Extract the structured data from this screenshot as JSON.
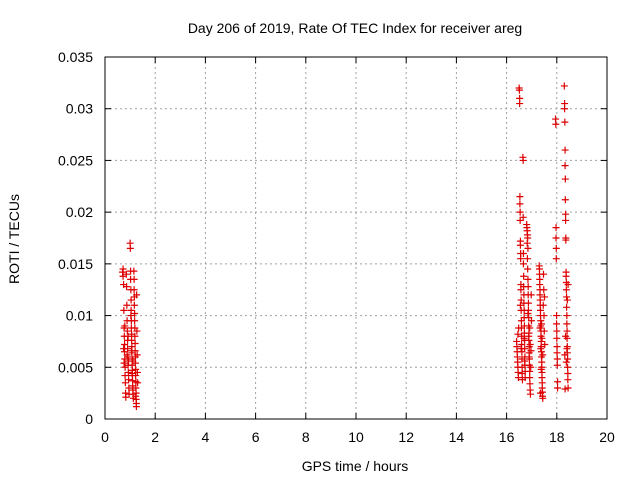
{
  "chart_data": {
    "type": "scatter",
    "title": "Day 206 of 2019, Rate Of TEC Index for receiver areg",
    "xlabel": "GPS time / hours",
    "ylabel": "ROTI / TECUs",
    "xlim": [
      0,
      20
    ],
    "ylim": [
      0,
      0.035
    ],
    "xticks": [
      0,
      2,
      4,
      6,
      8,
      10,
      12,
      14,
      16,
      18,
      20
    ],
    "xtick_labels": [
      "0",
      "2",
      "4",
      "6",
      "8",
      "10",
      "12",
      "14",
      "16",
      "18",
      "20"
    ],
    "yticks": [
      0,
      0.005,
      0.01,
      0.015,
      0.02,
      0.025,
      0.03,
      0.035
    ],
    "ytick_labels": [
      "0",
      "0.005",
      "0.01",
      "0.015",
      "0.02",
      "0.025",
      "0.03",
      "0.035"
    ],
    "grid": true,
    "marker": "plus",
    "color": "#dd0000",
    "series": [
      {
        "name": "ROTI",
        "points": [
          [
            0.7,
            0.0142
          ],
          [
            0.72,
            0.0138
          ],
          [
            0.74,
            0.013
          ],
          [
            0.75,
            0.0105
          ],
          [
            0.76,
            0.0088
          ],
          [
            0.77,
            0.008
          ],
          [
            0.78,
            0.0072
          ],
          [
            0.78,
            0.0065
          ],
          [
            0.79,
            0.0058
          ],
          [
            0.8,
            0.005
          ],
          [
            0.8,
            0.0042
          ],
          [
            0.81,
            0.0035
          ],
          [
            0.82,
            0.0025
          ],
          [
            0.83,
            0.0021
          ],
          [
            0.72,
            0.0145
          ],
          [
            0.74,
            0.0068
          ],
          [
            0.76,
            0.0054
          ],
          [
            0.79,
            0.009
          ],
          [
            0.85,
            0.014
          ],
          [
            0.86,
            0.0128
          ],
          [
            0.87,
            0.011
          ],
          [
            0.88,
            0.0095
          ],
          [
            0.89,
            0.0085
          ],
          [
            0.9,
            0.0076
          ],
          [
            0.9,
            0.0068
          ],
          [
            0.91,
            0.006
          ],
          [
            0.92,
            0.0052
          ],
          [
            0.93,
            0.0045
          ],
          [
            0.94,
            0.0038
          ],
          [
            0.95,
            0.003
          ],
          [
            0.96,
            0.0024
          ],
          [
            0.88,
            0.0062
          ],
          [
            0.92,
            0.008
          ],
          [
            0.94,
            0.0056
          ],
          [
            1.0,
            0.017
          ],
          [
            1.01,
            0.0165
          ],
          [
            1.02,
            0.0143
          ],
          [
            1.02,
            0.0135
          ],
          [
            1.03,
            0.0125
          ],
          [
            1.04,
            0.0115
          ],
          [
            1.04,
            0.0105
          ],
          [
            1.05,
            0.0095
          ],
          [
            1.05,
            0.0088
          ],
          [
            1.06,
            0.0082
          ],
          [
            1.06,
            0.0076
          ],
          [
            1.07,
            0.007
          ],
          [
            1.07,
            0.0064
          ],
          [
            1.08,
            0.0058
          ],
          [
            1.08,
            0.0052
          ],
          [
            1.09,
            0.0047
          ],
          [
            1.09,
            0.0042
          ],
          [
            1.1,
            0.0037
          ],
          [
            1.1,
            0.0032
          ],
          [
            1.11,
            0.0028
          ],
          [
            1.12,
            0.0024
          ],
          [
            1.13,
            0.002
          ],
          [
            1.03,
            0.01
          ],
          [
            1.06,
            0.0066
          ],
          [
            1.08,
            0.0044
          ],
          [
            1.11,
            0.0056
          ],
          [
            1.15,
            0.0143
          ],
          [
            1.16,
            0.0135
          ],
          [
            1.16,
            0.0125
          ],
          [
            1.17,
            0.0118
          ],
          [
            1.17,
            0.011
          ],
          [
            1.18,
            0.0102
          ],
          [
            1.18,
            0.0095
          ],
          [
            1.19,
            0.0088
          ],
          [
            1.19,
            0.008
          ],
          [
            1.2,
            0.0073
          ],
          [
            1.2,
            0.0066
          ],
          [
            1.21,
            0.006
          ],
          [
            1.21,
            0.0054
          ],
          [
            1.22,
            0.0048
          ],
          [
            1.22,
            0.0042
          ],
          [
            1.23,
            0.0036
          ],
          [
            1.23,
            0.003
          ],
          [
            1.24,
            0.0025
          ],
          [
            1.24,
            0.0019
          ],
          [
            1.25,
            0.0015
          ],
          [
            1.25,
            0.0012
          ],
          [
            1.26,
            0.012
          ],
          [
            1.27,
            0.0085
          ],
          [
            1.28,
            0.0062
          ],
          [
            1.29,
            0.0045
          ],
          [
            1.3,
            0.0035
          ],
          [
            1.22,
            0.0022
          ],
          [
            16.4,
            0.0075
          ],
          [
            16.41,
            0.007
          ],
          [
            16.42,
            0.0065
          ],
          [
            16.43,
            0.006
          ],
          [
            16.44,
            0.0055
          ],
          [
            16.45,
            0.005
          ],
          [
            16.46,
            0.0045
          ],
          [
            16.47,
            0.004
          ],
          [
            16.45,
            0.0082
          ],
          [
            16.48,
            0.0088
          ],
          [
            16.5,
            0.032
          ],
          [
            16.51,
            0.0318
          ],
          [
            16.52,
            0.031
          ],
          [
            16.52,
            0.0305
          ],
          [
            16.53,
            0.0215
          ],
          [
            16.53,
            0.0208
          ],
          [
            16.54,
            0.02
          ],
          [
            16.54,
            0.0192
          ],
          [
            16.55,
            0.0172
          ],
          [
            16.55,
            0.0168
          ],
          [
            16.56,
            0.016
          ],
          [
            16.56,
            0.0155
          ],
          [
            16.57,
            0.013
          ],
          [
            16.57,
            0.0125
          ],
          [
            16.58,
            0.0115
          ],
          [
            16.58,
            0.0105
          ],
          [
            16.59,
            0.0095
          ],
          [
            16.59,
            0.0088
          ],
          [
            16.6,
            0.008
          ],
          [
            16.6,
            0.0072
          ],
          [
            16.61,
            0.0065
          ],
          [
            16.61,
            0.0058
          ],
          [
            16.62,
            0.005
          ],
          [
            16.62,
            0.0044
          ],
          [
            16.63,
            0.0038
          ],
          [
            16.55,
            0.011
          ],
          [
            16.58,
            0.0068
          ],
          [
            16.65,
            0.0253
          ],
          [
            16.66,
            0.025
          ],
          [
            16.66,
            0.0195
          ],
          [
            16.67,
            0.016
          ],
          [
            16.67,
            0.015
          ],
          [
            16.68,
            0.0138
          ],
          [
            16.68,
            0.0128
          ],
          [
            16.69,
            0.012
          ],
          [
            16.69,
            0.0112
          ],
          [
            16.7,
            0.0105
          ],
          [
            16.7,
            0.0098
          ],
          [
            16.71,
            0.009
          ],
          [
            16.71,
            0.0083
          ],
          [
            16.72,
            0.0076
          ],
          [
            16.72,
            0.0068
          ],
          [
            16.73,
            0.006
          ],
          [
            16.73,
            0.0052
          ],
          [
            16.74,
            0.0046
          ],
          [
            16.74,
            0.004
          ],
          [
            16.7,
            0.0078
          ],
          [
            16.72,
            0.0056
          ],
          [
            16.8,
            0.0188
          ],
          [
            16.81,
            0.0185
          ],
          [
            16.82,
            0.0182
          ],
          [
            16.83,
            0.0178
          ],
          [
            16.84,
            0.0175
          ],
          [
            16.82,
            0.017
          ],
          [
            16.85,
            0.0165
          ],
          [
            16.83,
            0.0155
          ],
          [
            16.84,
            0.0145
          ],
          [
            16.85,
            0.0135
          ],
          [
            16.86,
            0.0128
          ],
          [
            16.86,
            0.012
          ],
          [
            16.87,
            0.0112
          ],
          [
            16.87,
            0.0105
          ],
          [
            16.88,
            0.0098
          ],
          [
            16.88,
            0.009
          ],
          [
            16.89,
            0.0083
          ],
          [
            16.89,
            0.0076
          ],
          [
            16.9,
            0.007
          ],
          [
            16.9,
            0.0064
          ],
          [
            16.91,
            0.0058
          ],
          [
            16.91,
            0.0052
          ],
          [
            16.92,
            0.0046
          ],
          [
            16.92,
            0.004
          ],
          [
            16.93,
            0.0034
          ],
          [
            16.94,
            0.0028
          ],
          [
            16.95,
            0.0024
          ],
          [
            16.85,
            0.0102
          ],
          [
            16.88,
            0.008
          ],
          [
            16.9,
            0.006
          ],
          [
            16.92,
            0.0088
          ],
          [
            16.94,
            0.0072
          ],
          [
            16.96,
            0.005
          ],
          [
            16.97,
            0.0066
          ],
          [
            16.98,
            0.012
          ],
          [
            16.99,
            0.0095
          ],
          [
            17.3,
            0.0148
          ],
          [
            17.31,
            0.0145
          ],
          [
            17.31,
            0.014
          ],
          [
            17.32,
            0.0135
          ],
          [
            17.32,
            0.013
          ],
          [
            17.33,
            0.0125
          ],
          [
            17.33,
            0.012
          ],
          [
            17.34,
            0.0115
          ],
          [
            17.34,
            0.011
          ],
          [
            17.35,
            0.0105
          ],
          [
            17.35,
            0.01
          ],
          [
            17.36,
            0.0095
          ],
          [
            17.36,
            0.009
          ],
          [
            17.37,
            0.0085
          ],
          [
            17.37,
            0.008
          ],
          [
            17.38,
            0.0075
          ],
          [
            17.38,
            0.007
          ],
          [
            17.39,
            0.0065
          ],
          [
            17.39,
            0.006
          ],
          [
            17.4,
            0.0055
          ],
          [
            17.4,
            0.005
          ],
          [
            17.41,
            0.0045
          ],
          [
            17.41,
            0.004
          ],
          [
            17.42,
            0.0035
          ],
          [
            17.42,
            0.003
          ],
          [
            17.43,
            0.0026
          ],
          [
            17.43,
            0.0022
          ],
          [
            17.44,
            0.002
          ],
          [
            17.33,
            0.0088
          ],
          [
            17.36,
            0.0068
          ],
          [
            17.39,
            0.0092
          ],
          [
            17.41,
            0.0078
          ],
          [
            17.44,
            0.0062
          ],
          [
            17.46,
            0.011
          ],
          [
            17.47,
            0.014
          ],
          [
            17.48,
            0.0125
          ],
          [
            17.49,
            0.01
          ],
          [
            17.5,
            0.0085
          ],
          [
            17.51,
            0.0118
          ],
          [
            17.52,
            0.0072
          ],
          [
            17.35,
            0.0025
          ],
          [
            17.38,
            0.0048
          ],
          [
            17.95,
            0.029
          ],
          [
            17.96,
            0.0285
          ],
          [
            17.97,
            0.0185
          ],
          [
            17.97,
            0.0175
          ],
          [
            17.98,
            0.0165
          ],
          [
            17.98,
            0.0155
          ],
          [
            17.99,
            0.01
          ],
          [
            17.99,
            0.0092
          ],
          [
            18.0,
            0.0085
          ],
          [
            18.0,
            0.0078
          ],
          [
            18.01,
            0.007
          ],
          [
            18.01,
            0.0064
          ],
          [
            18.02,
            0.0058
          ],
          [
            18.02,
            0.0052
          ],
          [
            18.03,
            0.0036
          ],
          [
            18.03,
            0.003
          ],
          [
            18.3,
            0.0322
          ],
          [
            18.31,
            0.0305
          ],
          [
            18.31,
            0.03
          ],
          [
            18.32,
            0.0287
          ],
          [
            18.33,
            0.026
          ],
          [
            18.33,
            0.0245
          ],
          [
            18.34,
            0.0232
          ],
          [
            18.34,
            0.0212
          ],
          [
            18.35,
            0.0198
          ],
          [
            18.35,
            0.0192
          ],
          [
            18.36,
            0.0175
          ],
          [
            18.36,
            0.0173
          ],
          [
            18.37,
            0.0142
          ],
          [
            18.37,
            0.0138
          ],
          [
            18.38,
            0.0132
          ],
          [
            18.38,
            0.0125
          ],
          [
            18.39,
            0.0118
          ],
          [
            18.39,
            0.0108
          ],
          [
            18.4,
            0.01
          ],
          [
            18.4,
            0.0092
          ],
          [
            18.41,
            0.0085
          ],
          [
            18.41,
            0.0078
          ],
          [
            18.42,
            0.007
          ],
          [
            18.42,
            0.0064
          ],
          [
            18.43,
            0.0058
          ],
          [
            18.43,
            0.005
          ],
          [
            18.44,
            0.0044
          ],
          [
            18.44,
            0.0038
          ],
          [
            18.45,
            0.003
          ],
          [
            18.32,
            0.0062
          ],
          [
            18.35,
            0.008
          ],
          [
            18.38,
            0.0055
          ],
          [
            18.4,
            0.0068
          ],
          [
            18.42,
            0.0115
          ],
          [
            18.45,
            0.013
          ],
          [
            18.33,
            0.0029
          ]
        ]
      }
    ]
  }
}
